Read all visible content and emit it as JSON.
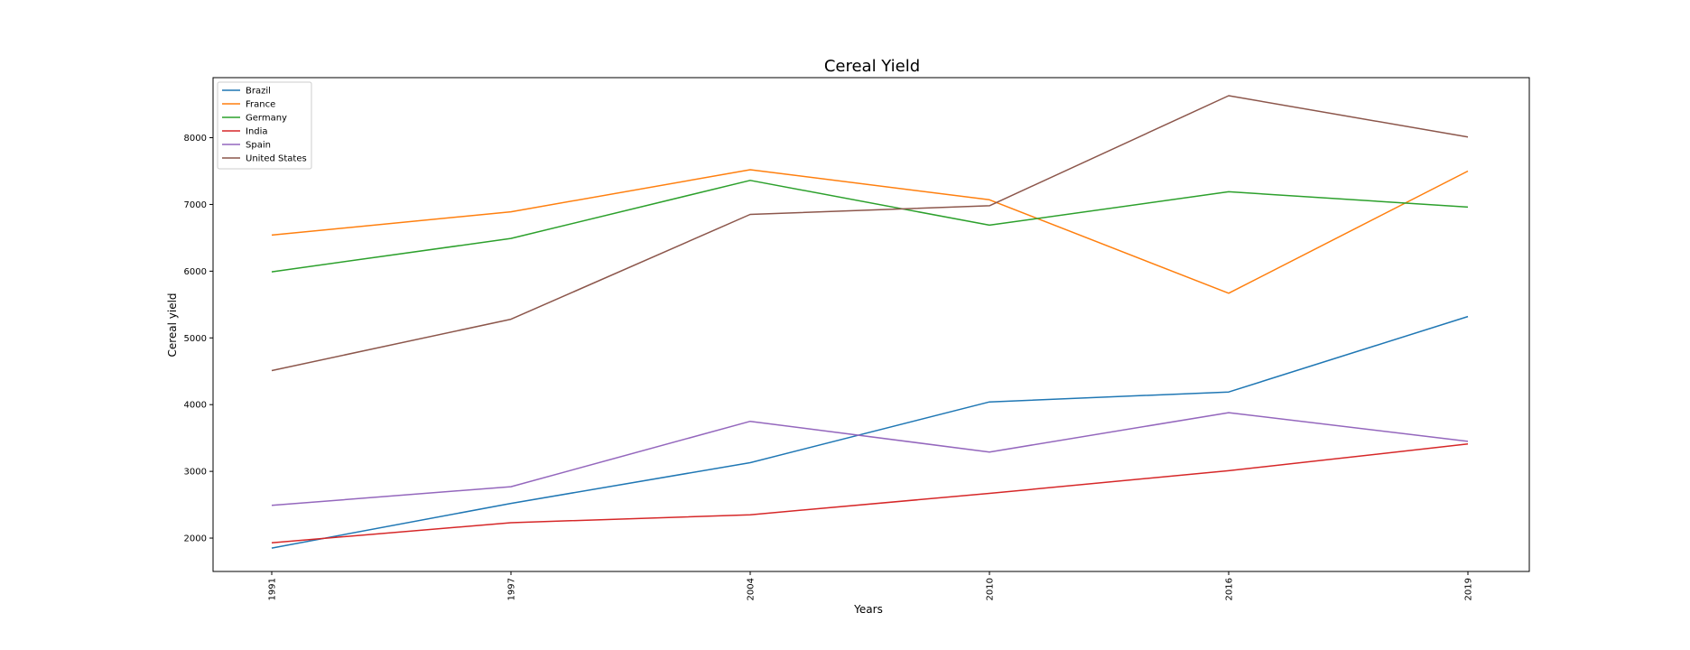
{
  "chart_data": {
    "type": "line",
    "title": "Cereal Yield",
    "xlabel": "Years",
    "ylabel": "Cereal yield",
    "x": [
      "1991",
      "1997",
      "2004",
      "2010",
      "2016",
      "2019"
    ],
    "ylim": [
      1500,
      8900
    ],
    "yticks": [
      2000,
      3000,
      4000,
      5000,
      6000,
      7000,
      8000
    ],
    "grid": false,
    "legend_position": "top-left",
    "series": [
      {
        "name": "Brazil",
        "color": "#1f77b4",
        "values": [
          1850,
          2520,
          3130,
          4040,
          4190,
          5320
        ]
      },
      {
        "name": "France",
        "color": "#ff7f0e",
        "values": [
          6540,
          6890,
          7520,
          7070,
          5670,
          7500
        ]
      },
      {
        "name": "Germany",
        "color": "#2ca02c",
        "values": [
          5990,
          6490,
          7360,
          6690,
          7190,
          6960
        ]
      },
      {
        "name": "India",
        "color": "#d62728",
        "values": [
          1930,
          2230,
          2350,
          2670,
          3010,
          3410
        ]
      },
      {
        "name": "Spain",
        "color": "#9467bd",
        "values": [
          2490,
          2770,
          3750,
          3290,
          3880,
          3450
        ]
      },
      {
        "name": "United States",
        "color": "#8c564b",
        "values": [
          4510,
          5280,
          6850,
          6980,
          8630,
          8010
        ]
      }
    ]
  }
}
